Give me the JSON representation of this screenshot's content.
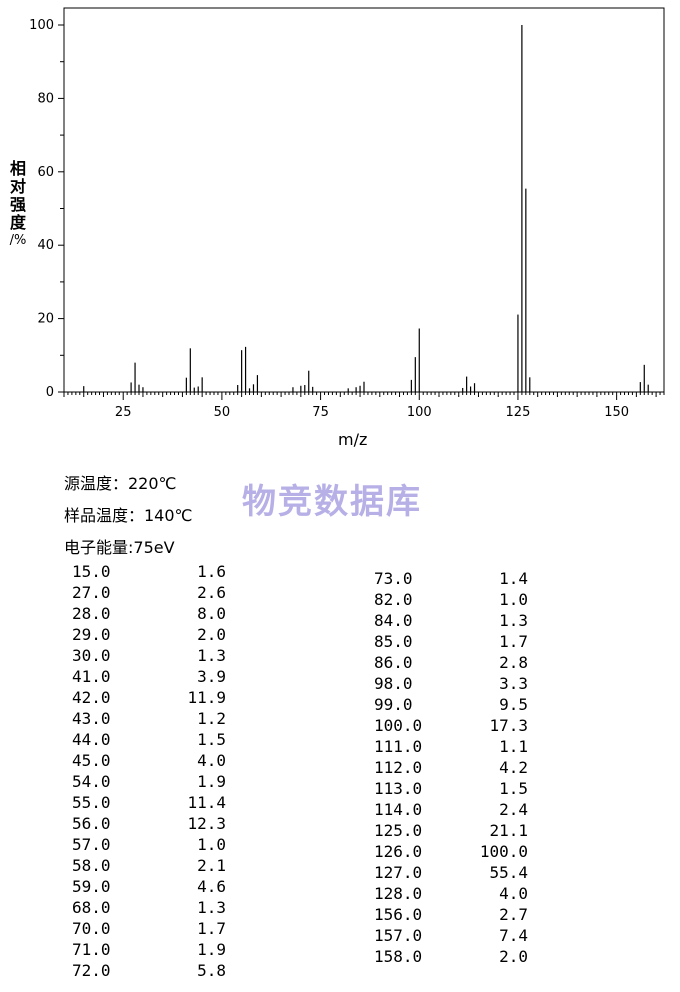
{
  "chart_data": {
    "type": "bar",
    "title": "",
    "xlabel": "m/z",
    "ylabel": "相对强度/%",
    "xlim": [
      10,
      162
    ],
    "ylim": [
      0,
      100
    ],
    "xticks": [
      25,
      50,
      75,
      100,
      125,
      150
    ],
    "yticks": [
      0,
      20,
      40,
      60,
      80,
      100
    ],
    "grid": false,
    "x": [
      15,
      27,
      28,
      29,
      30,
      41,
      42,
      43,
      44,
      45,
      54,
      55,
      56,
      57,
      58,
      59,
      68,
      70,
      71,
      72,
      73,
      82,
      84,
      85,
      86,
      98,
      99,
      100,
      111,
      112,
      113,
      114,
      125,
      126,
      127,
      128,
      156,
      157,
      158
    ],
    "values": [
      1.6,
      2.6,
      8.0,
      2.0,
      1.3,
      3.9,
      11.9,
      1.2,
      1.5,
      4.0,
      1.9,
      11.4,
      12.3,
      1.0,
      2.1,
      4.6,
      1.3,
      1.7,
      1.9,
      5.8,
      1.4,
      1.0,
      1.3,
      1.7,
      2.8,
      3.3,
      9.5,
      17.3,
      1.1,
      4.2,
      1.5,
      2.4,
      21.1,
      100.0,
      55.4,
      4.0,
      2.7,
      7.4,
      2.0
    ]
  },
  "labels": {
    "ylabel_chars": [
      "相",
      "对",
      "强",
      "度",
      "/%"
    ]
  },
  "info": {
    "source_temp": "源温度：220℃",
    "sample_temp": "样品温度：140℃",
    "electron_energy": "电子能量:75eV"
  },
  "watermark": "物竞数据库",
  "table": {
    "left": [
      [
        "15.0",
        "1.6"
      ],
      [
        "27.0",
        "2.6"
      ],
      [
        "28.0",
        "8.0"
      ],
      [
        "29.0",
        "2.0"
      ],
      [
        "30.0",
        "1.3"
      ],
      [
        "41.0",
        "3.9"
      ],
      [
        "42.0",
        "11.9"
      ],
      [
        "43.0",
        "1.2"
      ],
      [
        "44.0",
        "1.5"
      ],
      [
        "45.0",
        "4.0"
      ],
      [
        "54.0",
        "1.9"
      ],
      [
        "55.0",
        "11.4"
      ],
      [
        "56.0",
        "12.3"
      ],
      [
        "57.0",
        "1.0"
      ],
      [
        "58.0",
        "2.1"
      ],
      [
        "59.0",
        "4.6"
      ],
      [
        "68.0",
        "1.3"
      ],
      [
        "70.0",
        "1.7"
      ],
      [
        "71.0",
        "1.9"
      ],
      [
        "72.0",
        "5.8"
      ]
    ],
    "right": [
      [
        "73.0",
        "1.4"
      ],
      [
        "82.0",
        "1.0"
      ],
      [
        "84.0",
        "1.3"
      ],
      [
        "85.0",
        "1.7"
      ],
      [
        "86.0",
        "2.8"
      ],
      [
        "98.0",
        "3.3"
      ],
      [
        "99.0",
        "9.5"
      ],
      [
        "100.0",
        "17.3"
      ],
      [
        "111.0",
        "1.1"
      ],
      [
        "112.0",
        "4.2"
      ],
      [
        "113.0",
        "1.5"
      ],
      [
        "114.0",
        "2.4"
      ],
      [
        "125.0",
        "21.1"
      ],
      [
        "126.0",
        "100.0"
      ],
      [
        "127.0",
        "55.4"
      ],
      [
        "128.0",
        "4.0"
      ],
      [
        "156.0",
        "2.7"
      ],
      [
        "157.0",
        "7.4"
      ],
      [
        "158.0",
        "2.0"
      ]
    ]
  }
}
